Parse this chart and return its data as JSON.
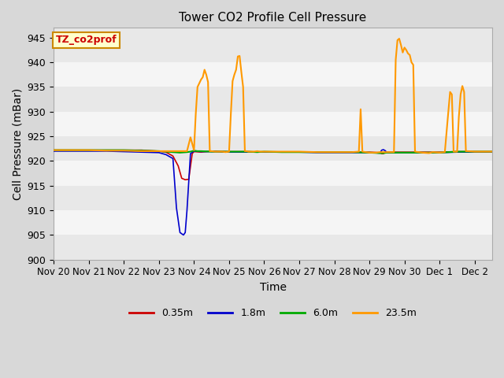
{
  "title": "Tower CO2 Profile Cell Pressure",
  "xlabel": "Time",
  "ylabel": "Cell Pressure (mBar)",
  "ylim": [
    900,
    947
  ],
  "yticks": [
    900,
    905,
    910,
    915,
    920,
    925,
    930,
    935,
    940,
    945
  ],
  "annotation_label": "TZ_co2prof",
  "annotation_color": "#cc0000",
  "annotation_bg": "#ffffcc",
  "annotation_border": "#cc8800",
  "legend_labels": [
    "0.35m",
    "1.8m",
    "6.0m",
    "23.5m"
  ],
  "legend_colors": [
    "#cc0000",
    "#0000cc",
    "#00aa00",
    "#ff9900"
  ],
  "tick_labels": [
    "Nov 20",
    "Nov 21",
    "Nov 22",
    "Nov 23",
    "Nov 24",
    "Nov 25",
    "Nov 26",
    "Nov 27",
    "Nov 28",
    "Nov 29",
    "Nov 30",
    "Dec 1",
    "Dec 2"
  ],
  "band_colors": [
    "#e8e8e8",
    "#f5f5f5"
  ],
  "series": {
    "red_035m": {
      "color": "#cc0000",
      "lw": 1.2,
      "points": [
        [
          0.0,
          922.2
        ],
        [
          0.5,
          922.2
        ],
        [
          1.0,
          922.2
        ],
        [
          1.5,
          922.2
        ],
        [
          2.0,
          922.2
        ],
        [
          2.5,
          922.2
        ],
        [
          3.0,
          922.0
        ],
        [
          3.2,
          921.8
        ],
        [
          3.4,
          921.0
        ],
        [
          3.55,
          919.0
        ],
        [
          3.65,
          916.5
        ],
        [
          3.75,
          916.2
        ],
        [
          3.85,
          916.3
        ],
        [
          3.95,
          921.5
        ],
        [
          4.0,
          921.9
        ],
        [
          4.2,
          921.8
        ],
        [
          4.5,
          922.0
        ],
        [
          5.0,
          921.9
        ],
        [
          5.5,
          921.9
        ],
        [
          6.0,
          921.8
        ],
        [
          6.5,
          921.8
        ],
        [
          7.0,
          921.8
        ],
        [
          7.5,
          921.8
        ],
        [
          8.0,
          921.8
        ],
        [
          8.5,
          921.8
        ],
        [
          9.0,
          921.8
        ],
        [
          9.3,
          921.7
        ],
        [
          9.35,
          921.5
        ],
        [
          9.4,
          921.5
        ],
        [
          9.45,
          921.7
        ],
        [
          9.5,
          921.8
        ],
        [
          10.0,
          921.8
        ],
        [
          10.5,
          921.8
        ],
        [
          11.0,
          921.8
        ],
        [
          11.5,
          921.9
        ],
        [
          12.0,
          921.9
        ],
        [
          12.5,
          921.9
        ]
      ]
    },
    "blue_18m": {
      "color": "#0000cc",
      "lw": 1.2,
      "points": [
        [
          0.0,
          922.0
        ],
        [
          0.5,
          922.0
        ],
        [
          1.0,
          922.0
        ],
        [
          1.5,
          922.0
        ],
        [
          2.0,
          921.9
        ],
        [
          2.5,
          921.8
        ],
        [
          3.0,
          921.7
        ],
        [
          3.2,
          921.3
        ],
        [
          3.4,
          920.5
        ],
        [
          3.5,
          910.5
        ],
        [
          3.6,
          905.5
        ],
        [
          3.7,
          905.0
        ],
        [
          3.75,
          905.5
        ],
        [
          3.8,
          910.0
        ],
        [
          3.9,
          921.5
        ],
        [
          4.0,
          922.0
        ],
        [
          4.2,
          921.9
        ],
        [
          4.5,
          921.9
        ],
        [
          5.0,
          921.8
        ],
        [
          5.5,
          921.8
        ],
        [
          6.0,
          921.8
        ],
        [
          6.5,
          921.8
        ],
        [
          7.0,
          921.8
        ],
        [
          7.5,
          921.7
        ],
        [
          8.0,
          921.7
        ],
        [
          8.5,
          921.7
        ],
        [
          9.0,
          921.7
        ],
        [
          9.3,
          921.6
        ],
        [
          9.35,
          922.2
        ],
        [
          9.4,
          922.3
        ],
        [
          9.45,
          922.1
        ],
        [
          9.5,
          921.7
        ],
        [
          10.0,
          921.7
        ],
        [
          10.5,
          921.7
        ],
        [
          11.0,
          921.7
        ],
        [
          11.5,
          921.8
        ],
        [
          12.0,
          921.8
        ],
        [
          12.5,
          921.8
        ]
      ]
    },
    "green_60m": {
      "color": "#00aa00",
      "lw": 1.5,
      "points": [
        [
          0.0,
          922.2
        ],
        [
          0.5,
          922.2
        ],
        [
          1.0,
          922.2
        ],
        [
          1.5,
          922.2
        ],
        [
          2.0,
          922.2
        ],
        [
          2.5,
          922.1
        ],
        [
          3.0,
          922.0
        ],
        [
          3.2,
          921.9
        ],
        [
          3.4,
          921.8
        ],
        [
          3.6,
          921.7
        ],
        [
          3.8,
          921.8
        ],
        [
          3.9,
          921.9
        ],
        [
          4.0,
          922.1
        ],
        [
          4.1,
          922.0
        ],
        [
          4.2,
          922.0
        ],
        [
          4.5,
          921.9
        ],
        [
          5.0,
          921.9
        ],
        [
          5.1,
          921.9
        ],
        [
          5.5,
          921.9
        ],
        [
          5.8,
          921.8
        ],
        [
          6.0,
          921.9
        ],
        [
          6.5,
          921.8
        ],
        [
          7.0,
          921.8
        ],
        [
          7.5,
          921.8
        ],
        [
          8.0,
          921.8
        ],
        [
          8.5,
          921.8
        ],
        [
          9.0,
          921.7
        ],
        [
          9.3,
          921.6
        ],
        [
          9.35,
          921.6
        ],
        [
          9.4,
          921.6
        ],
        [
          9.5,
          921.7
        ],
        [
          10.0,
          921.7
        ],
        [
          10.5,
          921.7
        ],
        [
          11.0,
          921.7
        ],
        [
          11.5,
          921.9
        ],
        [
          12.0,
          921.9
        ],
        [
          12.5,
          921.9
        ]
      ]
    },
    "orange_235m": {
      "color": "#ff9900",
      "lw": 1.5,
      "points": [
        [
          0.0,
          922.2
        ],
        [
          0.5,
          922.2
        ],
        [
          1.0,
          922.2
        ],
        [
          1.5,
          922.1
        ],
        [
          2.0,
          922.1
        ],
        [
          2.5,
          922.0
        ],
        [
          3.0,
          922.0
        ],
        [
          3.5,
          922.0
        ],
        [
          3.8,
          922.0
        ],
        [
          3.9,
          924.8
        ],
        [
          4.0,
          922.2
        ],
        [
          4.05,
          929.5
        ],
        [
          4.1,
          935.0
        ],
        [
          4.2,
          936.5
        ],
        [
          4.25,
          937.0
        ],
        [
          4.3,
          938.5
        ],
        [
          4.35,
          937.5
        ],
        [
          4.4,
          936.0
        ],
        [
          4.45,
          922.0
        ],
        [
          4.5,
          922.0
        ],
        [
          4.6,
          921.9
        ],
        [
          4.7,
          921.9
        ],
        [
          4.8,
          921.9
        ],
        [
          4.9,
          921.8
        ],
        [
          5.0,
          921.9
        ],
        [
          5.05,
          929.5
        ],
        [
          5.1,
          936.2
        ],
        [
          5.15,
          937.5
        ],
        [
          5.2,
          938.5
        ],
        [
          5.25,
          941.2
        ],
        [
          5.3,
          941.3
        ],
        [
          5.35,
          938.0
        ],
        [
          5.4,
          935.0
        ],
        [
          5.45,
          922.0
        ],
        [
          5.5,
          922.0
        ],
        [
          5.55,
          921.9
        ],
        [
          5.6,
          921.9
        ],
        [
          5.7,
          921.9
        ],
        [
          5.8,
          922.0
        ],
        [
          5.9,
          921.9
        ],
        [
          6.0,
          921.9
        ],
        [
          6.1,
          921.9
        ],
        [
          6.5,
          921.9
        ],
        [
          7.0,
          921.9
        ],
        [
          7.5,
          921.8
        ],
        [
          8.0,
          921.8
        ],
        [
          8.5,
          921.8
        ],
        [
          8.7,
          921.9
        ],
        [
          8.75,
          930.5
        ],
        [
          8.8,
          921.9
        ],
        [
          9.0,
          921.7
        ],
        [
          9.2,
          921.7
        ],
        [
          9.3,
          921.8
        ],
        [
          9.4,
          921.8
        ],
        [
          9.5,
          921.8
        ],
        [
          9.6,
          921.8
        ],
        [
          9.7,
          921.8
        ],
        [
          9.75,
          940.5
        ],
        [
          9.8,
          944.5
        ],
        [
          9.85,
          944.8
        ],
        [
          9.9,
          943.5
        ],
        [
          9.95,
          942.0
        ],
        [
          10.0,
          943.0
        ],
        [
          10.05,
          942.5
        ],
        [
          10.1,
          941.8
        ],
        [
          10.15,
          941.5
        ],
        [
          10.2,
          940.0
        ],
        [
          10.25,
          939.5
        ],
        [
          10.3,
          921.9
        ],
        [
          10.4,
          921.8
        ],
        [
          10.5,
          921.7
        ],
        [
          10.7,
          921.6
        ],
        [
          10.75,
          921.7
        ],
        [
          10.8,
          921.8
        ],
        [
          11.0,
          921.7
        ],
        [
          11.15,
          921.8
        ],
        [
          11.25,
          930.0
        ],
        [
          11.3,
          934.0
        ],
        [
          11.35,
          933.5
        ],
        [
          11.4,
          921.9
        ],
        [
          11.45,
          921.9
        ],
        [
          11.5,
          921.9
        ],
        [
          11.55,
          929.0
        ],
        [
          11.6,
          933.5
        ],
        [
          11.65,
          935.2
        ],
        [
          11.7,
          934.0
        ],
        [
          11.75,
          922.0
        ],
        [
          11.8,
          922.0
        ],
        [
          12.0,
          921.9
        ],
        [
          12.5,
          921.9
        ]
      ]
    }
  }
}
